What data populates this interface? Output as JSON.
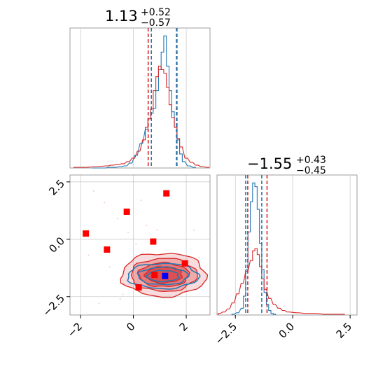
{
  "colors": {
    "red": "#d62728",
    "blue": "#1f77b4",
    "marker_red": "#ff0000",
    "marker_blue": "#0000ff",
    "grid": "#cccccc",
    "spine": "#888888"
  },
  "chart_data": {
    "type": "corner",
    "panels": [
      {
        "id": "marginal-x",
        "type": "histogram",
        "title": {
          "value": "1.13",
          "upper": "+0.52",
          "lower": "−0.57"
        },
        "xlim": [
          -2.4,
          2.9
        ],
        "grid": true,
        "quantile_lines": {
          "red": [
            0.56,
            1.65
          ],
          "blue": [
            0.68,
            1.63
          ]
        },
        "series": [
          {
            "color": "blue",
            "bin_centers": [
              -1.5,
              -1.3,
              -1.1,
              -0.9,
              -0.7,
              -0.5,
              -0.3,
              -0.1,
              0.1,
              0.3,
              0.5,
              0.6,
              0.7,
              0.8,
              0.9,
              1.0,
              1.1,
              1.2,
              1.3,
              1.4,
              1.5,
              1.6,
              1.7,
              1.8,
              1.9,
              2.1,
              2.3
            ],
            "counts": [
              0,
              0,
              0,
              1,
              1,
              2,
              3,
              7,
              18,
              35,
              55,
              70,
              78,
              85,
              110,
              140,
              165,
              188,
              145,
              110,
              80,
              58,
              40,
              20,
              9,
              3,
              1
            ]
          },
          {
            "color": "red",
            "bin_centers": [
              -2.2,
              -1.8,
              -1.4,
              -1.0,
              -0.8,
              -0.6,
              -0.4,
              -0.2,
              0.0,
              0.2,
              0.4,
              0.5,
              0.6,
              0.7,
              0.8,
              0.9,
              1.0,
              1.1,
              1.2,
              1.3,
              1.4,
              1.5,
              1.6,
              1.7,
              1.8,
              2.0,
              2.2,
              2.4,
              2.6,
              2.8
            ],
            "counts": [
              1,
              1,
              2,
              3,
              4,
              5,
              6,
              9,
              14,
              24,
              40,
              58,
              70,
              84,
              110,
              130,
              145,
              140,
              135,
              115,
              90,
              72,
              58,
              42,
              30,
              14,
              8,
              4,
              2,
              1
            ]
          }
        ]
      },
      {
        "id": "marginal-y",
        "type": "histogram",
        "title": {
          "value": "−1.55",
          "upper": "+0.43",
          "lower": "−0.45"
        },
        "xlim": [
          -3.3,
          2.8
        ],
        "xticks": [
          "−2.5",
          "0.0",
          "2.5"
        ],
        "xtick_values": [
          -2.5,
          0.0,
          2.5
        ],
        "grid": true,
        "quantile_lines": {
          "red": [
            -1.96,
            -1.12
          ],
          "blue": [
            -2.05,
            -1.35
          ]
        },
        "series": [
          {
            "color": "blue",
            "bin_centers": [
              -2.6,
              -2.4,
              -2.2,
              -2.1,
              -2.0,
              -1.9,
              -1.8,
              -1.7,
              -1.6,
              -1.5,
              -1.4,
              -1.3,
              -1.2,
              -1.1,
              -1.0,
              -0.9,
              -0.8
            ],
            "counts": [
              1,
              3,
              9,
              25,
              60,
              110,
              150,
              175,
              170,
              140,
              95,
              60,
              30,
              14,
              6,
              2,
              1
            ]
          },
          {
            "color": "red",
            "bin_centers": [
              -3.2,
              -3.0,
              -2.8,
              -2.6,
              -2.4,
              -2.2,
              -2.0,
              -1.8,
              -1.7,
              -1.6,
              -1.5,
              -1.4,
              -1.3,
              -1.2,
              -1.0,
              -0.8,
              -0.6,
              -0.4,
              -0.2,
              0.2,
              0.6,
              1.0,
              1.4,
              1.8,
              2.2
            ],
            "counts": [
              2,
              4,
              8,
              16,
              28,
              42,
              58,
              72,
              85,
              88,
              80,
              64,
              48,
              34,
              22,
              14,
              9,
              6,
              4,
              3,
              2,
              2,
              1,
              1,
              1
            ]
          }
        ]
      },
      {
        "id": "joint",
        "type": "contour-scatter",
        "xlim": [
          -2.4,
          2.9
        ],
        "ylim": [
          -3.3,
          2.8
        ],
        "xticks": [
          "−2",
          "0",
          "2"
        ],
        "xtick_values": [
          -2,
          0,
          2
        ],
        "yticks": [
          "−2.5",
          "0.0",
          "2.5"
        ],
        "ytick_values": [
          -2.5,
          0.0,
          2.5
        ],
        "grid": true,
        "red_contour_levels": [
          {
            "cx": 1.15,
            "cy": -1.55,
            "rx": 1.6,
            "ry": 0.95,
            "opacity": 0.3
          },
          {
            "cx": 1.15,
            "cy": -1.55,
            "rx": 1.25,
            "ry": 0.72,
            "opacity": 0.5
          },
          {
            "cx": 1.15,
            "cy": -1.55,
            "rx": 0.95,
            "ry": 0.52,
            "opacity": 0.7
          },
          {
            "cx": 1.15,
            "cy": -1.55,
            "rx": 0.7,
            "ry": 0.35,
            "opacity": 0.9
          }
        ],
        "blue_contour_levels": [
          {
            "cx": 1.12,
            "cy": -1.6,
            "rx": 1.35,
            "ry": 0.55
          },
          {
            "cx": 1.12,
            "cy": -1.6,
            "rx": 0.95,
            "ry": 0.38
          },
          {
            "cx": 1.12,
            "cy": -1.6,
            "rx": 0.6,
            "ry": 0.24
          }
        ],
        "red_markers": [
          {
            "x": -1.8,
            "y": 0.25
          },
          {
            "x": -1.0,
            "y": -0.45
          },
          {
            "x": -0.25,
            "y": 1.2
          },
          {
            "x": 1.25,
            "y": 2.0
          },
          {
            "x": 0.75,
            "y": -0.1
          },
          {
            "x": 1.95,
            "y": -1.05
          },
          {
            "x": 0.2,
            "y": -2.1
          },
          {
            "x": 0.8,
            "y": -1.55
          }
        ],
        "blue_markers": [
          {
            "x": 1.2,
            "y": -1.6
          }
        ],
        "faint_points": [
          {
            "x": -1.5,
            "y": 2.1
          },
          {
            "x": -1.1,
            "y": 1.6
          },
          {
            "x": -0.6,
            "y": 0.9
          },
          {
            "x": -0.2,
            "y": 0.3
          },
          {
            "x": 0.1,
            "y": -0.2
          },
          {
            "x": -0.9,
            "y": -1.2
          },
          {
            "x": -0.4,
            "y": -2.4
          },
          {
            "x": 0.5,
            "y": 0.6
          },
          {
            "x": 0.3,
            "y": 1.7
          },
          {
            "x": 2.3,
            "y": 0.4
          },
          {
            "x": 2.5,
            "y": -0.8
          },
          {
            "x": -1.3,
            "y": -2.8
          },
          {
            "x": -0.5,
            "y": -2.6
          },
          {
            "x": 0.9,
            "y": 0.4
          },
          {
            "x": -1.7,
            "y": -0.7
          }
        ]
      }
    ]
  }
}
